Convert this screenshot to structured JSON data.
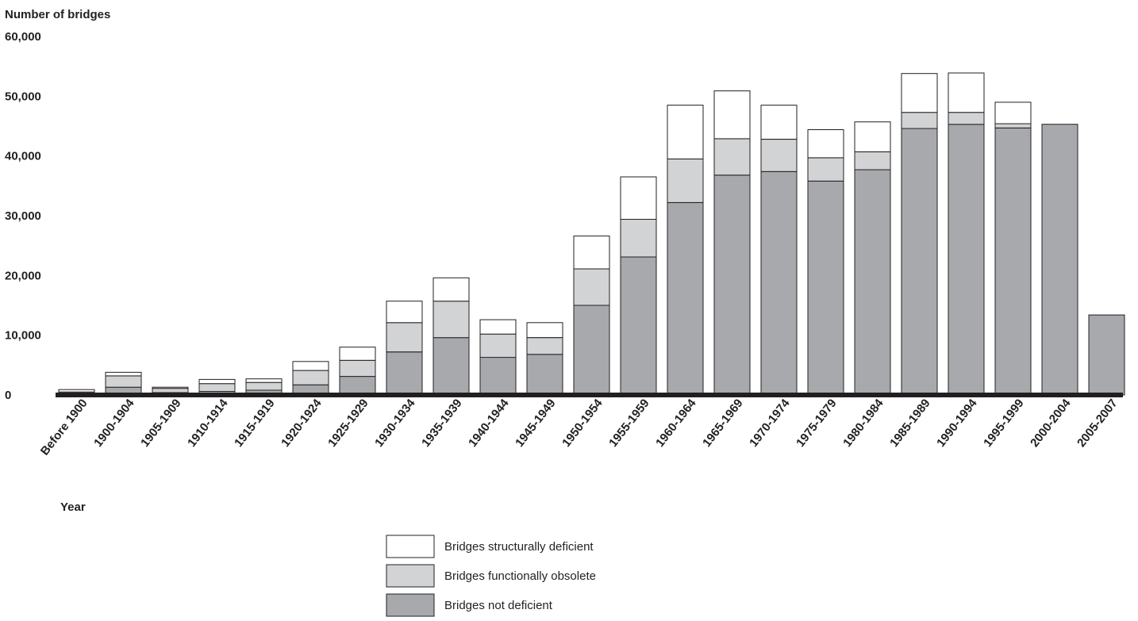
{
  "chart_data": {
    "type": "bar",
    "stacked": true,
    "ylabel": "Number of bridges",
    "xlabel": "Year",
    "ylim": [
      0,
      60000
    ],
    "yticks": [
      0,
      10000,
      20000,
      30000,
      40000,
      50000,
      60000
    ],
    "ytick_labels": [
      "0",
      "10,000",
      "20,000",
      "30,000",
      "40,000",
      "50,000",
      "60,000"
    ],
    "grid": false,
    "legend_position": "bottom-center",
    "categories": [
      "Before 1900",
      "1900-1904",
      "1905-1909",
      "1910-1914",
      "1915-1919",
      "1920-1924",
      "1925-1929",
      "1930-1934",
      "1935-1939",
      "1940-1944",
      "1945-1949",
      "1950-1954",
      "1955-1959",
      "1960-1964",
      "1965-1969",
      "1970-1974",
      "1975-1979",
      "1980-1984",
      "1985-1989",
      "1990-1994",
      "1995-1999",
      "2000-2004",
      "2005-2007"
    ],
    "series": [
      {
        "name": "Bridges not deficient",
        "color": "#a7a9ac",
        "values": [
          300,
          1300,
          400,
          600,
          800,
          1700,
          3100,
          7200,
          9600,
          6300,
          6800,
          15000,
          23100,
          32200,
          36800,
          37400,
          35800,
          37700,
          44600,
          45300,
          44700,
          45300,
          13400
        ]
      },
      {
        "name": "Bridges functionally obsolete",
        "color": "#d1d3d4",
        "values": [
          200,
          1900,
          700,
          1300,
          1300,
          2400,
          2700,
          4900,
          6100,
          3900,
          2800,
          6100,
          6300,
          7300,
          6100,
          5400,
          3900,
          3000,
          2700,
          2000,
          700,
          0,
          0
        ]
      },
      {
        "name": "Bridges structurally deficient",
        "color": "#ffffff",
        "values": [
          400,
          600,
          200,
          700,
          600,
          1500,
          2200,
          3600,
          3900,
          2400,
          2500,
          5500,
          7100,
          9000,
          8000,
          5700,
          4700,
          5000,
          6500,
          6600,
          3600,
          0,
          0
        ]
      }
    ]
  }
}
